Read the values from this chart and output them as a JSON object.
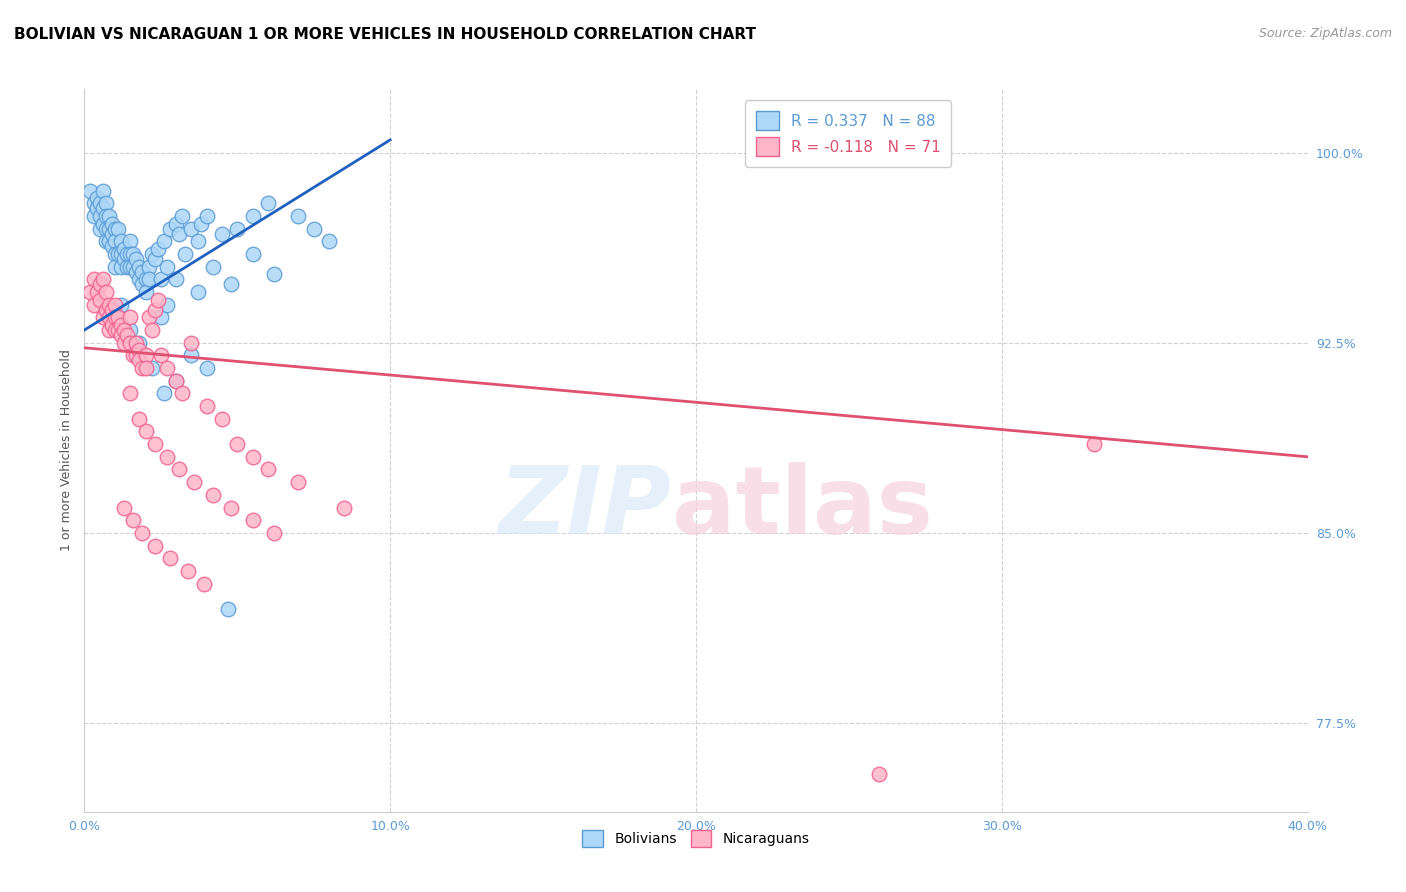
{
  "title": "BOLIVIAN VS NICARAGUAN 1 OR MORE VEHICLES IN HOUSEHOLD CORRELATION CHART",
  "source": "Source: ZipAtlas.com",
  "ylabel": "1 or more Vehicles in Household",
  "xlim": [
    0.0,
    40.0
  ],
  "ylim": [
    74.0,
    102.5
  ],
  "yticks": [
    77.5,
    85.0,
    92.5,
    100.0
  ],
  "ytick_labels": [
    "77.5%",
    "85.0%",
    "92.5%",
    "100.0%"
  ],
  "xtick_positions": [
    0.0,
    10.0,
    20.0,
    30.0,
    40.0
  ],
  "xtick_labels": [
    "0.0%",
    "10.0%",
    "20.0%",
    "30.0%",
    "40.0%"
  ],
  "legend_r_bolivian": "R = 0.337",
  "legend_n_bolivian": "N = 88",
  "legend_r_nicaraguan": "R = -0.118",
  "legend_n_nicaraguan": "N = 71",
  "bolivian_color": "#add8f7",
  "bolivian_edge_color": "#5b9bd5",
  "nicaraguan_color": "#ffb6c8",
  "nicaraguan_edge_color": "#f06090",
  "trendline_bolivian_color": "#2060c0",
  "trendline_nicaraguan_color": "#e05070",
  "title_fontsize": 11,
  "source_fontsize": 9,
  "axis_label_fontsize": 9,
  "tick_fontsize": 9,
  "legend_fontsize": 11,
  "trendline_bolivian_x0": 0.0,
  "trendline_bolivian_y0": 93.0,
  "trendline_bolivian_x1": 10.0,
  "trendline_bolivian_y1": 100.5,
  "trendline_nicaraguan_x0": 0.0,
  "trendline_nicaraguan_y0": 92.3,
  "trendline_nicaraguan_x1": 40.0,
  "trendline_nicaraguan_y1": 88.0,
  "bolivians_x": [
    0.2,
    0.3,
    0.3,
    0.4,
    0.4,
    0.5,
    0.5,
    0.5,
    0.6,
    0.6,
    0.6,
    0.7,
    0.7,
    0.7,
    0.7,
    0.8,
    0.8,
    0.8,
    0.9,
    0.9,
    0.9,
    1.0,
    1.0,
    1.0,
    1.0,
    1.1,
    1.1,
    1.2,
    1.2,
    1.2,
    1.3,
    1.3,
    1.4,
    1.4,
    1.5,
    1.5,
    1.5,
    1.6,
    1.6,
    1.7,
    1.7,
    1.8,
    1.8,
    1.9,
    1.9,
    2.0,
    2.0,
    2.1,
    2.1,
    2.2,
    2.3,
    2.4,
    2.5,
    2.6,
    2.7,
    2.8,
    3.0,
    3.1,
    3.2,
    3.5,
    3.7,
    3.8,
    4.0,
    4.5,
    5.0,
    5.5,
    6.0,
    7.0,
    7.5,
    8.0,
    2.5,
    2.7,
    3.0,
    3.3,
    3.7,
    4.2,
    4.8,
    5.5,
    6.2,
    1.2,
    1.5,
    1.8,
    2.2,
    2.6,
    3.0,
    3.5,
    4.0,
    4.7
  ],
  "bolivians_y": [
    98.5,
    98.0,
    97.5,
    98.2,
    97.8,
    98.0,
    97.5,
    97.0,
    98.5,
    97.8,
    97.2,
    98.0,
    97.5,
    97.0,
    96.5,
    97.5,
    97.0,
    96.5,
    97.2,
    96.8,
    96.3,
    97.0,
    96.5,
    96.0,
    95.5,
    97.0,
    96.0,
    96.5,
    96.0,
    95.5,
    96.2,
    95.8,
    96.0,
    95.5,
    96.5,
    96.0,
    95.5,
    96.0,
    95.5,
    95.8,
    95.3,
    95.5,
    95.0,
    95.3,
    94.8,
    95.0,
    94.5,
    95.5,
    95.0,
    96.0,
    95.8,
    96.2,
    95.0,
    96.5,
    95.5,
    97.0,
    97.2,
    96.8,
    97.5,
    97.0,
    96.5,
    97.2,
    97.5,
    96.8,
    97.0,
    97.5,
    98.0,
    97.5,
    97.0,
    96.5,
    93.5,
    94.0,
    95.0,
    96.0,
    94.5,
    95.5,
    94.8,
    96.0,
    95.2,
    94.0,
    93.0,
    92.5,
    91.5,
    90.5,
    91.0,
    92.0,
    91.5,
    82.0
  ],
  "nicaraguans_x": [
    0.2,
    0.3,
    0.3,
    0.4,
    0.5,
    0.5,
    0.6,
    0.6,
    0.7,
    0.7,
    0.8,
    0.8,
    0.8,
    0.9,
    0.9,
    1.0,
    1.0,
    1.0,
    1.1,
    1.1,
    1.2,
    1.2,
    1.3,
    1.3,
    1.4,
    1.5,
    1.5,
    1.6,
    1.7,
    1.7,
    1.8,
    1.8,
    1.9,
    2.0,
    2.0,
    2.1,
    2.2,
    2.3,
    2.4,
    2.5,
    2.7,
    3.0,
    3.2,
    3.5,
    4.0,
    4.5,
    5.0,
    5.5,
    6.0,
    7.0,
    8.5,
    1.5,
    1.8,
    2.0,
    2.3,
    2.7,
    3.1,
    3.6,
    4.2,
    4.8,
    5.5,
    6.2,
    1.3,
    1.6,
    1.9,
    2.3,
    2.8,
    3.4,
    3.9,
    26.0,
    33.0
  ],
  "nicaraguans_y": [
    94.5,
    95.0,
    94.0,
    94.5,
    94.8,
    94.2,
    95.0,
    93.5,
    94.5,
    93.8,
    94.0,
    93.5,
    93.0,
    93.8,
    93.2,
    94.0,
    93.5,
    93.0,
    93.5,
    93.0,
    93.2,
    92.8,
    93.0,
    92.5,
    92.8,
    93.5,
    92.5,
    92.0,
    92.5,
    92.0,
    92.2,
    91.8,
    91.5,
    92.0,
    91.5,
    93.5,
    93.0,
    93.8,
    94.2,
    92.0,
    91.5,
    91.0,
    90.5,
    92.5,
    90.0,
    89.5,
    88.5,
    88.0,
    87.5,
    87.0,
    86.0,
    90.5,
    89.5,
    89.0,
    88.5,
    88.0,
    87.5,
    87.0,
    86.5,
    86.0,
    85.5,
    85.0,
    86.0,
    85.5,
    85.0,
    84.5,
    84.0,
    83.5,
    83.0,
    75.5,
    88.5
  ]
}
